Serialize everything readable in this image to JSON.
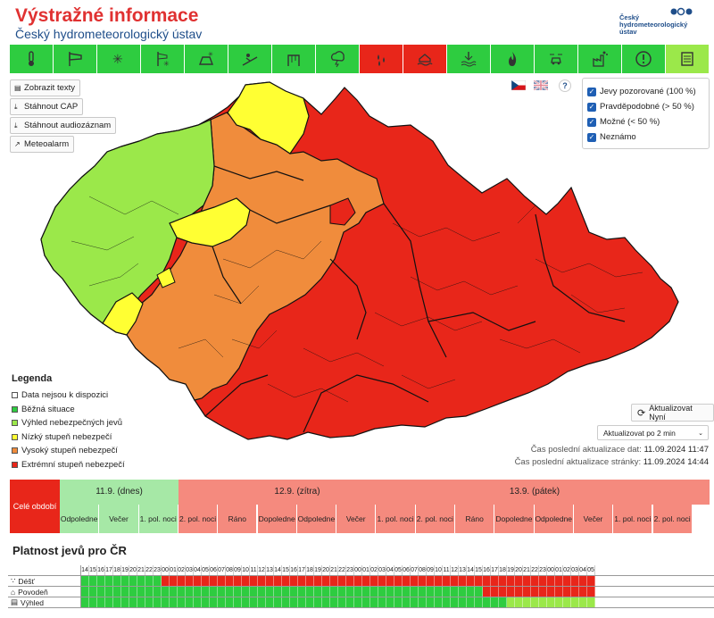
{
  "header": {
    "title": "Výstražné informace",
    "subtitle": "Český hydrometeorologický ústav",
    "logo_text": "Český hydrometeorologický ústav"
  },
  "toolbar": {
    "items": [
      {
        "icon": "thermometer-icon",
        "color": "#2ecc40"
      },
      {
        "icon": "windsock-icon",
        "color": "#2ecc40"
      },
      {
        "icon": "snow-icon",
        "color": "#2ecc40"
      },
      {
        "icon": "snow-wind-icon",
        "color": "#2ecc40"
      },
      {
        "icon": "icy-road-icon",
        "color": "#2ecc40"
      },
      {
        "icon": "slope-icon",
        "color": "#2ecc40"
      },
      {
        "icon": "rain-icing-icon",
        "color": "#2ecc40"
      },
      {
        "icon": "thunderstorm-icon",
        "color": "#2ecc40"
      },
      {
        "icon": "rain-drops-icon",
        "color": "#e8261a"
      },
      {
        "icon": "flood-icon",
        "color": "#e8261a"
      },
      {
        "icon": "drought-icon",
        "color": "#2ecc40"
      },
      {
        "icon": "fire-icon",
        "color": "#2ecc40"
      },
      {
        "icon": "fog-car-icon",
        "color": "#2ecc40"
      },
      {
        "icon": "factory-smog-icon",
        "color": "#2ecc40"
      },
      {
        "icon": "warning-info-icon",
        "color": "#2ecc40"
      },
      {
        "icon": "text-list-icon",
        "color": "#9be84a"
      }
    ]
  },
  "left_buttons": {
    "show_texts": "Zobrazit texty",
    "download_cap": "Stáhnout CAP",
    "download_audio": "Stáhnout audiozáznam",
    "meteoalarm": "Meteoalarm"
  },
  "filters": [
    {
      "label": "Jevy pozorované (100 %)",
      "checked": true
    },
    {
      "label": "Pravděpodobné (> 50 %)",
      "checked": true
    },
    {
      "label": "Možné (< 50 %)",
      "checked": true
    },
    {
      "label": "Neznámo",
      "checked": true
    }
  ],
  "legend": {
    "title": "Legenda",
    "items": [
      {
        "label": "Data nejsou k dispozici",
        "color": "#ffffff"
      },
      {
        "label": "Běžná situace",
        "color": "#2ecc40"
      },
      {
        "label": "Výhled nebezpečných jevů",
        "color": "#9be84a"
      },
      {
        "label": "Nízký stupeň nebezpečí",
        "color": "#ffff33"
      },
      {
        "label": "Vysoký stupeň nebezpečí",
        "color": "#f08c3c"
      },
      {
        "label": "Extrémní stupeň nebezpečí",
        "color": "#e8261a"
      }
    ]
  },
  "refresh": {
    "now_label": "Aktualizovat Nyní",
    "interval_label": "Aktualizovat po 2 min",
    "data_update_label": "Čas poslední aktualizace dat:",
    "data_update_value": "11.09.2024 11:47",
    "page_update_label": "Čas poslední aktualizace stránky:",
    "page_update_value": "11.09.2024 14:44"
  },
  "timeline": {
    "whole_period": "Celé období",
    "days": [
      {
        "label": "11.9. (dnes)",
        "color": "#a6e8a6"
      },
      {
        "label": "12.9. (zítra)",
        "color": "#f58a7e"
      },
      {
        "label": "13.9. (pátek)",
        "color": "#f58a7e"
      },
      {
        "label": "",
        "color": "#f58a7e"
      }
    ],
    "parts": [
      {
        "label": "Odpoledne",
        "color": "#a6e8a6"
      },
      {
        "label": "Večer",
        "color": "#a6e8a6"
      },
      {
        "label": "1. pol. noci",
        "color": "#a6e8a6"
      },
      {
        "label": "2. pol. noci",
        "color": "#f58a7e"
      },
      {
        "label": "Ráno",
        "color": "#f58a7e"
      },
      {
        "label": "Dopoledne",
        "color": "#f58a7e"
      },
      {
        "label": "Odpoledne",
        "color": "#f58a7e"
      },
      {
        "label": "Večer",
        "color": "#f58a7e"
      },
      {
        "label": "1. pol. noci",
        "color": "#f58a7e"
      },
      {
        "label": "2. pol. noci",
        "color": "#f58a7e"
      },
      {
        "label": "Ráno",
        "color": "#f58a7e"
      },
      {
        "label": "Dopoledne",
        "color": "#f58a7e"
      },
      {
        "label": "Odpoledne",
        "color": "#f58a7e"
      },
      {
        "label": "Večer",
        "color": "#f58a7e"
      },
      {
        "label": "1. pol. noci",
        "color": "#f58a7e"
      },
      {
        "label": "2. pol. noci",
        "color": "#f58a7e"
      }
    ]
  },
  "platnost": {
    "title": "Platnost jevů pro ČR",
    "hours": [
      "14",
      "15",
      "16",
      "17",
      "18",
      "19",
      "20",
      "21",
      "22",
      "23",
      "00",
      "01",
      "02",
      "03",
      "04",
      "05",
      "06",
      "07",
      "08",
      "09",
      "10",
      "11",
      "12",
      "13",
      "14",
      "15",
      "16",
      "17",
      "18",
      "19",
      "20",
      "21",
      "22",
      "23",
      "00",
      "01",
      "02",
      "03",
      "04",
      "05",
      "06",
      "07",
      "08",
      "09",
      "10",
      "11",
      "12",
      "13",
      "14",
      "15",
      "16",
      "17",
      "18",
      "19",
      "20",
      "21",
      "22",
      "23",
      "00",
      "01",
      "02",
      "03",
      "04",
      "05"
    ],
    "rows": [
      {
        "label": "Déšť",
        "icon": "rain-drops-icon",
        "red_from": 10,
        "lime_from": 999
      },
      {
        "label": "Povodeň",
        "icon": "flood-icon",
        "red_from": 50,
        "lime_from": 999
      },
      {
        "label": "Výhled",
        "icon": "text-list-icon",
        "red_from": 999,
        "lime_from": 53
      }
    ]
  }
}
